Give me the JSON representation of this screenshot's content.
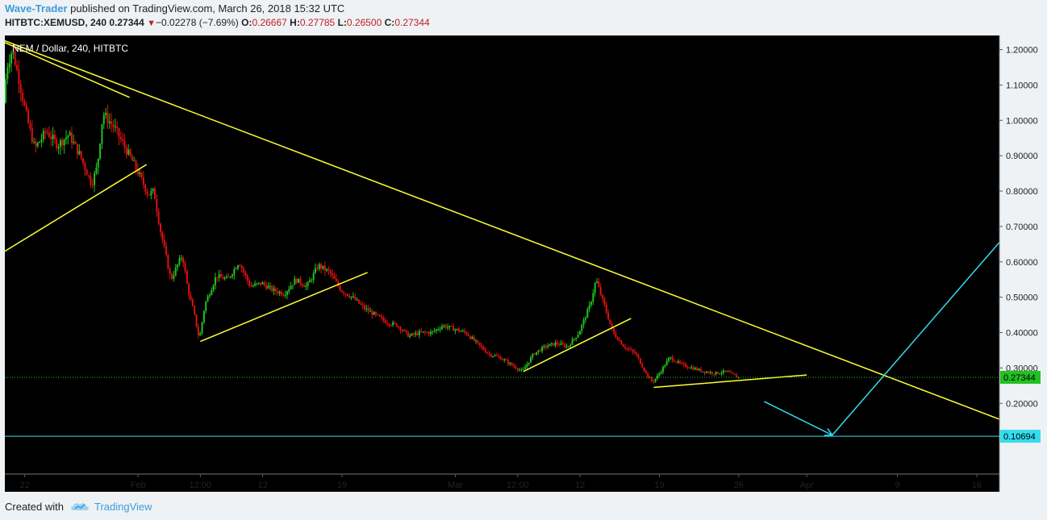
{
  "header": {
    "author": "Wave-Trader",
    "published_text": " published on TradingView.com, March 26, 2018 15:32 UTC",
    "symbol": "HITBTC:XEMUSD, 240",
    "last": "0.27344",
    "change": "−0.02278 (−7.69%)",
    "open_label": "O:",
    "open": "0.26667",
    "high_label": "H:",
    "high": "0.27785",
    "low_label": "L:",
    "low": "0.26500",
    "close_label": "C:",
    "close": "0.27344"
  },
  "footer": {
    "created_with": "Created with",
    "brand": "TradingView"
  },
  "colors": {
    "up": "#22c022",
    "down": "#e01010",
    "trendline": "#ffff33",
    "projection": "#33ddee",
    "price_line": "#22c022",
    "axis_text": "#222222"
  },
  "chart_data": {
    "type": "candlestick",
    "title": "NEM / Dollar, 240, HITBTC",
    "ylim": [
      0.0,
      1.24
    ],
    "yticks": [
      1.2,
      1.1,
      1.0,
      0.9,
      0.8,
      0.7,
      0.6,
      0.5,
      0.4,
      0.3,
      0.2
    ],
    "ytick_labels": [
      "1.20000",
      "1.10000",
      "1.00000",
      "0.90000",
      "0.80000",
      "0.70000",
      "0.60000",
      "0.50000",
      "0.40000",
      "0.30000",
      "0.20000"
    ],
    "xlim": [
      "2018-01-20T06:00",
      "2018-04-18T00:00"
    ],
    "xticks": [
      {
        "t": "2018-01-22T00:00",
        "label": "22"
      },
      {
        "t": "2018-02-01T00:00",
        "label": "Feb"
      },
      {
        "t": "2018-02-06T12:00",
        "label": "12:00"
      },
      {
        "t": "2018-02-12T00:00",
        "label": "12"
      },
      {
        "t": "2018-02-19T00:00",
        "label": "19"
      },
      {
        "t": "2018-03-01T00:00",
        "label": "Mar"
      },
      {
        "t": "2018-03-06T12:00",
        "label": "12:00"
      },
      {
        "t": "2018-03-12T00:00",
        "label": "12"
      },
      {
        "t": "2018-03-19T00:00",
        "label": "19"
      },
      {
        "t": "2018-03-26T00:00",
        "label": "26"
      },
      {
        "t": "2018-04-01T00:00",
        "label": "Apr"
      },
      {
        "t": "2018-04-09T00:00",
        "label": "9"
      },
      {
        "t": "2018-04-16T00:00",
        "label": "16"
      }
    ],
    "price_path": [
      [
        "2018-01-20T06:00",
        1.05
      ],
      [
        "2018-01-20T12:00",
        1.15
      ],
      [
        "2018-01-21T00:00",
        1.2
      ],
      [
        "2018-01-21T12:00",
        1.13
      ],
      [
        "2018-01-22T00:00",
        1.05
      ],
      [
        "2018-01-22T12:00",
        0.98
      ],
      [
        "2018-01-23T00:00",
        0.92
      ],
      [
        "2018-01-24T00:00",
        0.97
      ],
      [
        "2018-01-25T00:00",
        0.93
      ],
      [
        "2018-01-26T00:00",
        0.96
      ],
      [
        "2018-01-27T00:00",
        0.9
      ],
      [
        "2018-01-28T00:00",
        0.82
      ],
      [
        "2018-01-28T12:00",
        0.87
      ],
      [
        "2018-01-29T00:00",
        1.02
      ],
      [
        "2018-01-30T00:00",
        0.98
      ],
      [
        "2018-01-31T00:00",
        0.92
      ],
      [
        "2018-02-01T00:00",
        0.86
      ],
      [
        "2018-02-02T00:00",
        0.79
      ],
      [
        "2018-02-02T12:00",
        0.8
      ],
      [
        "2018-02-03T00:00",
        0.7
      ],
      [
        "2018-02-04T00:00",
        0.55
      ],
      [
        "2018-02-05T00:00",
        0.62
      ],
      [
        "2018-02-05T12:00",
        0.52
      ],
      [
        "2018-02-06T00:00",
        0.46
      ],
      [
        "2018-02-06T12:00",
        0.38
      ],
      [
        "2018-02-07T00:00",
        0.48
      ],
      [
        "2018-02-08T00:00",
        0.56
      ],
      [
        "2018-02-09T00:00",
        0.55
      ],
      [
        "2018-02-10T00:00",
        0.6
      ],
      [
        "2018-02-11T00:00",
        0.53
      ],
      [
        "2018-02-12T00:00",
        0.54
      ],
      [
        "2018-02-13T00:00",
        0.52
      ],
      [
        "2018-02-14T00:00",
        0.51
      ],
      [
        "2018-02-15T00:00",
        0.55
      ],
      [
        "2018-02-16T00:00",
        0.53
      ],
      [
        "2018-02-17T00:00",
        0.59
      ],
      [
        "2018-02-18T00:00",
        0.57
      ],
      [
        "2018-02-19T00:00",
        0.52
      ],
      [
        "2018-02-20T00:00",
        0.5
      ],
      [
        "2018-02-21T00:00",
        0.47
      ],
      [
        "2018-02-22T00:00",
        0.45
      ],
      [
        "2018-02-23T00:00",
        0.43
      ],
      [
        "2018-02-24T00:00",
        0.42
      ],
      [
        "2018-02-25T00:00",
        0.39
      ],
      [
        "2018-02-26T00:00",
        0.4
      ],
      [
        "2018-02-27T00:00",
        0.4
      ],
      [
        "2018-02-28T00:00",
        0.42
      ],
      [
        "2018-03-01T00:00",
        0.41
      ],
      [
        "2018-03-02T00:00",
        0.4
      ],
      [
        "2018-03-03T00:00",
        0.37
      ],
      [
        "2018-03-04T00:00",
        0.34
      ],
      [
        "2018-03-05T00:00",
        0.33
      ],
      [
        "2018-03-06T00:00",
        0.31
      ],
      [
        "2018-03-07T00:00",
        0.29
      ],
      [
        "2018-03-08T00:00",
        0.34
      ],
      [
        "2018-03-09T00:00",
        0.36
      ],
      [
        "2018-03-10T00:00",
        0.37
      ],
      [
        "2018-03-11T00:00",
        0.36
      ],
      [
        "2018-03-12T00:00",
        0.4
      ],
      [
        "2018-03-13T00:00",
        0.48
      ],
      [
        "2018-03-13T12:00",
        0.55
      ],
      [
        "2018-03-14T00:00",
        0.5
      ],
      [
        "2018-03-15T00:00",
        0.4
      ],
      [
        "2018-03-16T00:00",
        0.36
      ],
      [
        "2018-03-17T00:00",
        0.34
      ],
      [
        "2018-03-18T00:00",
        0.28
      ],
      [
        "2018-03-18T12:00",
        0.26
      ],
      [
        "2018-03-19T00:00",
        0.28
      ],
      [
        "2018-03-20T00:00",
        0.33
      ],
      [
        "2018-03-21T00:00",
        0.31
      ],
      [
        "2018-03-22T00:00",
        0.3
      ],
      [
        "2018-03-23T00:00",
        0.29
      ],
      [
        "2018-03-24T00:00",
        0.285
      ],
      [
        "2018-03-25T00:00",
        0.29
      ],
      [
        "2018-03-26T00:00",
        0.27344
      ]
    ],
    "trendlines": [
      {
        "name": "main-descending-resistance",
        "color": "trendline",
        "points": [
          [
            "2018-01-20T06:00",
            1.225
          ],
          [
            "2018-04-18T00:00",
            0.155
          ]
        ]
      },
      {
        "name": "upper-left-resistance",
        "color": "trendline",
        "points": [
          [
            "2018-01-20T06:00",
            1.22
          ],
          [
            "2018-01-31T06:00",
            1.065
          ]
        ]
      },
      {
        "name": "left-rising-support",
        "color": "trendline",
        "points": [
          [
            "2018-01-20T06:00",
            0.63
          ],
          [
            "2018-02-01T18:00",
            0.875
          ]
        ]
      },
      {
        "name": "feb-rising-support",
        "color": "trendline",
        "points": [
          [
            "2018-02-06T12:00",
            0.375
          ],
          [
            "2018-02-21T06:00",
            0.57
          ]
        ]
      },
      {
        "name": "mar-rising-support",
        "color": "trendline",
        "points": [
          [
            "2018-03-07T00:00",
            0.29
          ],
          [
            "2018-03-16T12:00",
            0.44
          ]
        ]
      },
      {
        "name": "late-mar-support",
        "color": "trendline",
        "points": [
          [
            "2018-03-18T12:00",
            0.245
          ],
          [
            "2018-04-01T00:00",
            0.28
          ]
        ]
      }
    ],
    "projection": [
      {
        "name": "projection-down",
        "points": [
          [
            "2018-03-28T06:00",
            0.205
          ],
          [
            "2018-04-03T06:00",
            0.11
          ]
        ],
        "arrow": true
      },
      {
        "name": "projection-up",
        "points": [
          [
            "2018-04-03T06:00",
            0.11
          ],
          [
            "2018-04-18T00:00",
            0.655
          ]
        ],
        "arrow": false
      }
    ],
    "price_lines": [
      {
        "name": "last-price-line",
        "value": 0.27344,
        "label": "0.27344",
        "color": "price_line",
        "dotted": true
      },
      {
        "name": "target-line",
        "value": 0.10694,
        "label": "0.10694",
        "color": "projection",
        "dotted": false
      }
    ]
  }
}
